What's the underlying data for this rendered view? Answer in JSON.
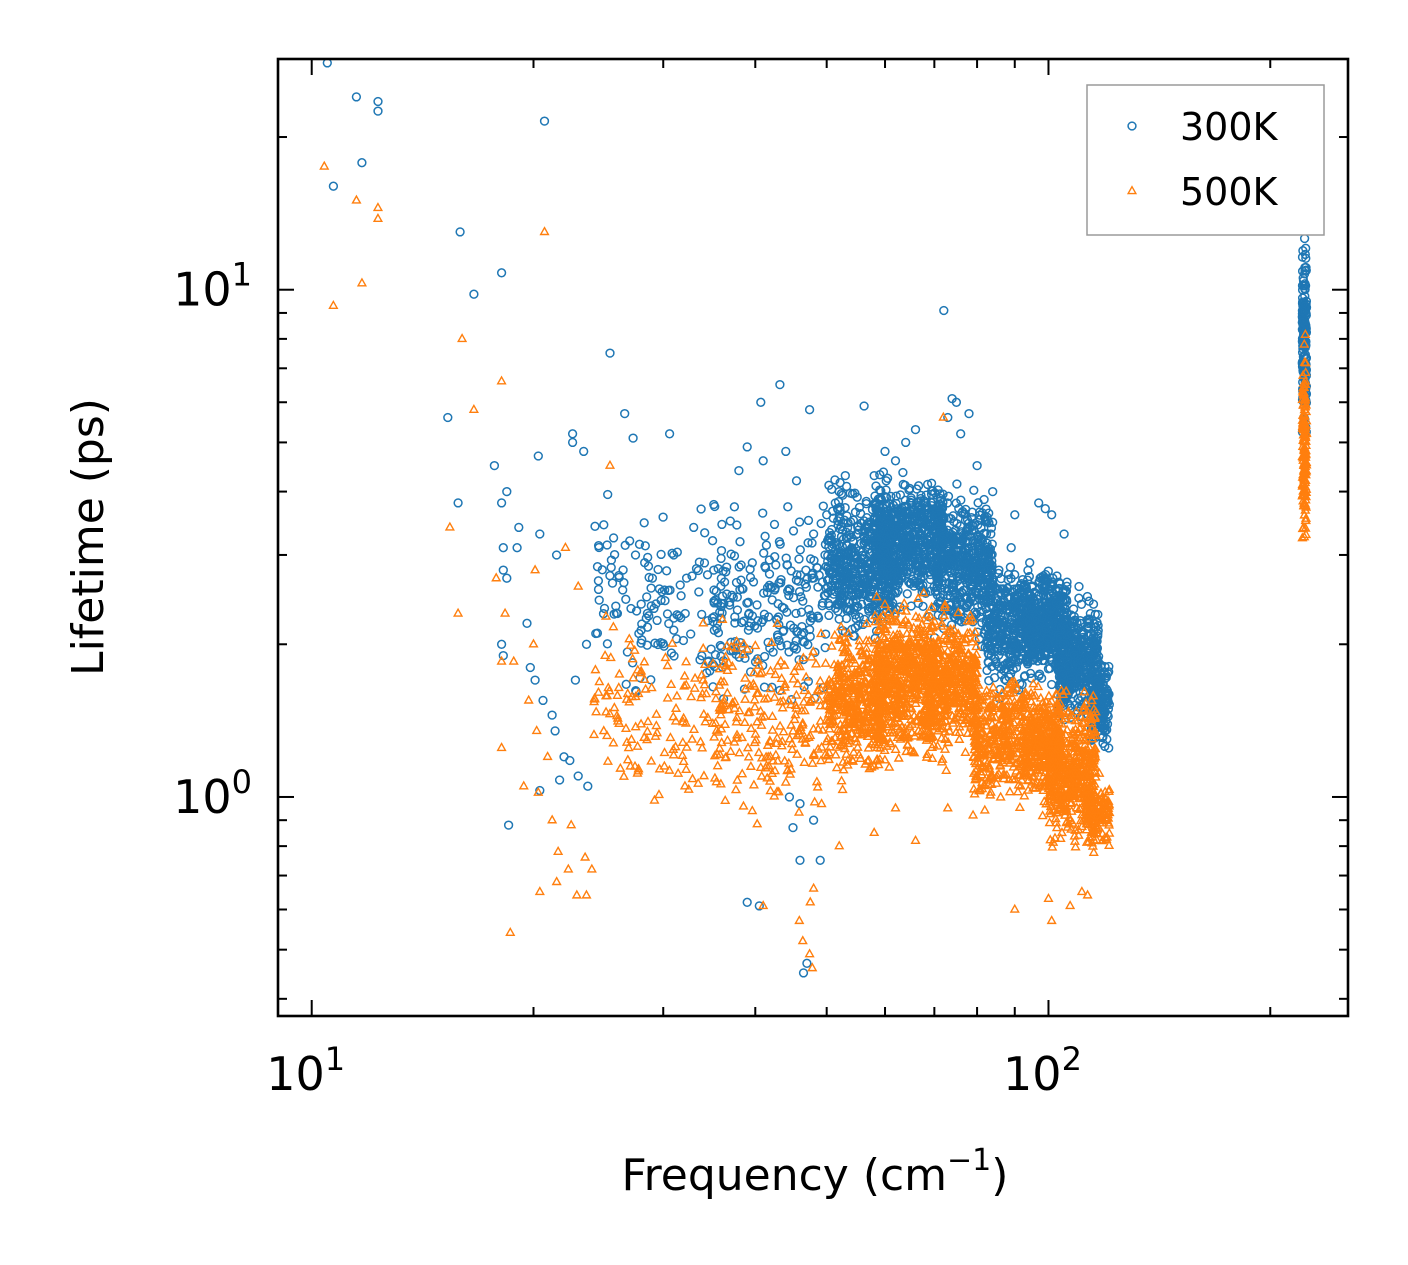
{
  "chart_data": {
    "type": "scatter",
    "title": "",
    "xlabel": "Frequency (cm",
    "xlabel_sup": "−1",
    "xlabel_close": ")",
    "ylabel": "Lifetime (ps)",
    "xscale": "log",
    "yscale": "log",
    "xlim": [
      9.0,
      255
    ],
    "ylim": [
      0.37,
      28.5
    ],
    "x_ticks": [
      {
        "value": 10,
        "base": "10",
        "exp": "1"
      },
      {
        "value": 100,
        "base": "10",
        "exp": "2"
      }
    ],
    "y_ticks": [
      {
        "value": 1,
        "base": "10",
        "exp": "0"
      },
      {
        "value": 10,
        "base": "10",
        "exp": "1"
      }
    ],
    "legend": {
      "position": "top-right",
      "entries": [
        {
          "label": "300K",
          "series": "300K"
        },
        {
          "label": "500K",
          "series": "500K"
        }
      ]
    },
    "colors": {
      "300K": "#1f77b4",
      "500K": "#ff7f0e"
    },
    "series": [
      {
        "name": "300K",
        "marker": "circle-open",
        "points": [
          [
            10.5,
            28.0
          ],
          [
            11.5,
            24.0
          ],
          [
            12.3,
            23.5
          ],
          [
            12.3,
            22.5
          ],
          [
            10.7,
            16.0
          ],
          [
            11.7,
            17.8
          ],
          [
            20.7,
            21.5
          ],
          [
            15.9,
            13.0
          ],
          [
            16.6,
            9.8
          ],
          [
            18.1,
            10.8
          ],
          [
            72.1,
            9.1
          ],
          [
            25.4,
            7.5
          ],
          [
            15.3,
            5.6
          ],
          [
            26.6,
            5.7
          ],
          [
            43.2,
            6.5
          ],
          [
            40.7,
            6.0
          ],
          [
            47.4,
            5.8
          ],
          [
            56.2,
            5.9
          ],
          [
            27.3,
            5.1
          ],
          [
            30.6,
            5.2
          ],
          [
            22.6,
            5.2
          ],
          [
            22.6,
            5.0
          ],
          [
            23.4,
            4.8
          ],
          [
            20.3,
            4.7
          ],
          [
            15.8,
            3.8
          ],
          [
            17.7,
            4.5
          ],
          [
            18.4,
            4.0
          ],
          [
            18.1,
            3.8
          ],
          [
            21.5,
            3.0
          ],
          [
            20.4,
            3.3
          ],
          [
            18.2,
            3.1
          ],
          [
            19.0,
            3.1
          ],
          [
            19.1,
            3.4
          ],
          [
            18.2,
            2.8
          ],
          [
            18.4,
            2.7
          ],
          [
            19.6,
            2.2
          ],
          [
            18.1,
            2.0
          ],
          [
            18.2,
            1.9
          ],
          [
            19.8,
            1.8
          ],
          [
            20.1,
            1.7
          ],
          [
            20.6,
            1.55
          ],
          [
            21.2,
            1.45
          ],
          [
            21.4,
            1.35
          ],
          [
            20.4,
            1.03
          ],
          [
            18.5,
            0.88
          ],
          [
            21.7,
            1.08
          ],
          [
            22.0,
            1.2
          ],
          [
            22.4,
            1.18
          ],
          [
            23.0,
            1.1
          ],
          [
            23.7,
            1.05
          ],
          [
            22.8,
            1.7
          ],
          [
            23.6,
            2.0
          ],
          [
            24.3,
            2.1
          ],
          [
            26.0,
            2.3
          ],
          [
            27.8,
            2.1
          ],
          [
            28.0,
            2.4
          ],
          [
            29.0,
            2.7
          ],
          [
            31.0,
            3.0
          ],
          [
            33.0,
            3.4
          ],
          [
            35.0,
            3.2
          ],
          [
            37.0,
            3.5
          ],
          [
            38.0,
            4.4
          ],
          [
            39.0,
            4.9
          ],
          [
            41.0,
            4.6
          ],
          [
            44.0,
            4.8
          ],
          [
            45.5,
            4.2
          ],
          [
            39.0,
            0.62
          ],
          [
            40.5,
            0.61
          ],
          [
            46.5,
            0.45
          ],
          [
            47.0,
            0.47
          ],
          [
            45.0,
            0.87
          ],
          [
            48.0,
            0.9
          ],
          [
            49.0,
            0.75
          ],
          [
            46.0,
            0.75
          ],
          [
            44.5,
            1.0
          ],
          [
            46.0,
            0.97
          ],
          [
            119.5,
            1.6
          ],
          [
            120.0,
            1.3
          ],
          [
            118.0,
            1.4
          ],
          [
            114.0,
            2.3
          ],
          [
            113.5,
            1.7
          ],
          [
            110.0,
            2.6
          ],
          [
            108.0,
            2.2
          ],
          [
            105.0,
            3.3
          ],
          [
            101.0,
            3.6
          ],
          [
            99.0,
            3.7
          ],
          [
            97.0,
            3.8
          ],
          [
            90.0,
            3.6
          ],
          [
            89.0,
            3.1
          ],
          [
            84.0,
            4.0
          ],
          [
            80.0,
            4.5
          ],
          [
            78.0,
            5.7
          ],
          [
            76.0,
            5.2
          ],
          [
            75.0,
            6.0
          ],
          [
            74.0,
            6.1
          ],
          [
            73.0,
            5.6
          ],
          [
            66.0,
            5.3
          ],
          [
            64.0,
            5.0
          ],
          [
            62.0,
            4.6
          ],
          [
            60.0,
            4.8
          ],
          [
            58.0,
            4.3
          ],
          [
            55.0,
            3.9
          ],
          [
            53.0,
            4.3
          ],
          [
            52.0,
            4.0
          ],
          [
            50.0,
            3.6
          ],
          [
            48.0,
            3.3
          ]
        ],
        "clusters": [
          {
            "xr": [
              24,
              36
            ],
            "yr": [
              1.4,
              4.3
            ],
            "n": 130
          },
          {
            "xr": [
              35,
              50
            ],
            "yr": [
              1.35,
              4.2
            ],
            "n": 220
          },
          {
            "xr": [
              50,
              62
            ],
            "yr": [
              1.9,
              4.5
            ],
            "n": 520
          },
          {
            "xr": [
              58,
              72
            ],
            "yr": [
              2.2,
              4.6
            ],
            "n": 650
          },
          {
            "xr": [
              70,
              84
            ],
            "yr": [
              1.9,
              4.3
            ],
            "n": 480
          },
          {
            "xr": [
              82,
              94
            ],
            "yr": [
              1.5,
              3.1
            ],
            "n": 330
          },
          {
            "xr": [
              93,
              106
            ],
            "yr": [
              1.6,
              3.0
            ],
            "n": 480
          },
          {
            "xr": [
              103,
              117
            ],
            "yr": [
              1.3,
              2.6
            ],
            "n": 420
          },
          {
            "xr": [
              114,
              121
            ],
            "yr": [
              1.2,
              2.0
            ],
            "n": 150
          },
          {
            "xr": [
              221,
              224
            ],
            "yr": [
              4.4,
              14.5
            ],
            "n": 160
          }
        ]
      },
      {
        "name": "500K",
        "marker": "triangle-open",
        "points": [
          [
            10.4,
            17.5
          ],
          [
            11.5,
            15.0
          ],
          [
            12.3,
            14.5
          ],
          [
            12.3,
            13.8
          ],
          [
            10.7,
            9.3
          ],
          [
            11.7,
            10.3
          ],
          [
            20.7,
            13.0
          ],
          [
            16.0,
            8.0
          ],
          [
            16.6,
            5.8
          ],
          [
            18.1,
            6.6
          ],
          [
            15.4,
            3.4
          ],
          [
            15.8,
            2.3
          ],
          [
            17.8,
            2.7
          ],
          [
            18.3,
            2.3
          ],
          [
            18.1,
            1.85
          ],
          [
            18.8,
            1.85
          ],
          [
            20.1,
            2.8
          ],
          [
            22.1,
            3.1
          ],
          [
            23.0,
            2.6
          ],
          [
            20.0,
            2.0
          ],
          [
            19.7,
            1.55
          ],
          [
            20.2,
            1.35
          ],
          [
            18.1,
            1.25
          ],
          [
            20.9,
            1.2
          ],
          [
            19.4,
            1.05
          ],
          [
            20.3,
            1.02
          ],
          [
            21.2,
            0.9
          ],
          [
            22.5,
            0.88
          ],
          [
            21.6,
            0.78
          ],
          [
            22.3,
            0.72
          ],
          [
            23.5,
            0.76
          ],
          [
            24.0,
            0.72
          ],
          [
            21.5,
            0.68
          ],
          [
            20.4,
            0.65
          ],
          [
            22.9,
            0.64
          ],
          [
            23.6,
            0.64
          ],
          [
            18.6,
            0.54
          ],
          [
            25.4,
            4.5
          ],
          [
            34.0,
            2.2
          ],
          [
            41.0,
            0.61
          ],
          [
            46.4,
            0.52
          ],
          [
            47.4,
            0.49
          ],
          [
            47.8,
            0.46
          ],
          [
            45.9,
            0.57
          ],
          [
            48.0,
            0.66
          ],
          [
            47.5,
            0.62
          ],
          [
            52.0,
            0.8
          ],
          [
            58.0,
            0.85
          ],
          [
            62.0,
            0.95
          ],
          [
            66.0,
            0.82
          ],
          [
            73.0,
            0.95
          ],
          [
            79.0,
            0.92
          ],
          [
            90.0,
            0.6
          ],
          [
            100.0,
            0.63
          ],
          [
            101.0,
            0.57
          ],
          [
            107.0,
            0.61
          ],
          [
            111.0,
            0.65
          ],
          [
            113.0,
            0.64
          ],
          [
            72.0,
            5.6
          ]
        ],
        "clusters": [
          {
            "xr": [
              24,
              36
            ],
            "yr": [
              0.9,
              2.5
            ],
            "n": 140
          },
          {
            "xr": [
              35,
              50
            ],
            "yr": [
              0.8,
              2.6
            ],
            "n": 220
          },
          {
            "xr": [
              50,
              60
            ],
            "yr": [
              1.0,
              2.4
            ],
            "n": 450
          },
          {
            "xr": [
              58,
              70
            ],
            "yr": [
              1.05,
              2.7
            ],
            "n": 600
          },
          {
            "xr": [
              68,
              80
            ],
            "yr": [
              1.1,
              2.5
            ],
            "n": 480
          },
          {
            "xr": [
              79,
              92
            ],
            "yr": [
              0.9,
              1.9
            ],
            "n": 330
          },
          {
            "xr": [
              92,
              104
            ],
            "yr": [
              0.9,
              1.8
            ],
            "n": 420
          },
          {
            "xr": [
              100,
              116
            ],
            "yr": [
              0.75,
              1.7
            ],
            "n": 450
          },
          {
            "xr": [
              112,
              121
            ],
            "yr": [
              0.75,
              1.15
            ],
            "n": 150
          },
          {
            "xr": [
              221,
              224
            ],
            "yr": [
              2.9,
              8.8
            ],
            "n": 150
          }
        ]
      }
    ]
  }
}
